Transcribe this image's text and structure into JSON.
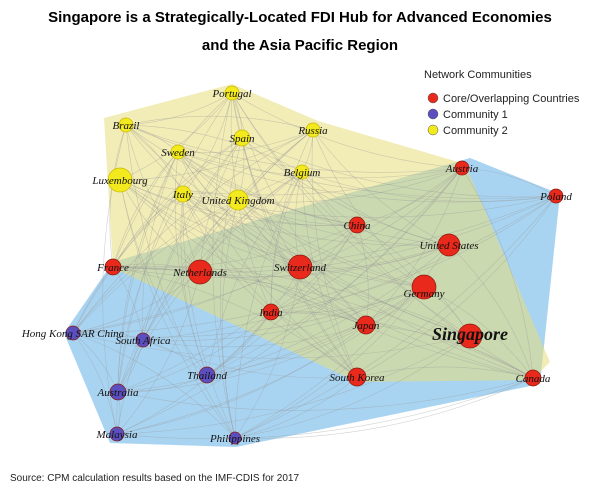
{
  "title": [
    "Singapore is a Strategically-Located FDI Hub for Advanced Economies",
    "and the Asia Pacific Region"
  ],
  "legend_title": "Network Communities",
  "communities": [
    {
      "name": "Core/Overlapping Countries",
      "color": "#e8291b",
      "nodes": [
        "Austria",
        "Poland",
        "China",
        "United States",
        "France",
        "Netherlands",
        "Switzerland",
        "Germany",
        "India",
        "Japan",
        "Singapore",
        "South Korea",
        "Canada"
      ]
    },
    {
      "name": "Community 1",
      "color": "#5b4fbf",
      "nodes": [
        "Hong Kong SAR China",
        "South Africa",
        "Thailand",
        "Australia",
        "Malaysia",
        "Philippines"
      ]
    },
    {
      "name": "Community 2",
      "color": "#f2ea1e",
      "nodes": [
        "Portugal",
        "Brazil",
        "Spain",
        "Russia",
        "Sweden",
        "Luxembourg",
        "Belgium",
        "Italy",
        "United Kingdom"
      ]
    }
  ],
  "source": "Source: CPM calculation results based on the IMF-CDIS for 2017"
}
